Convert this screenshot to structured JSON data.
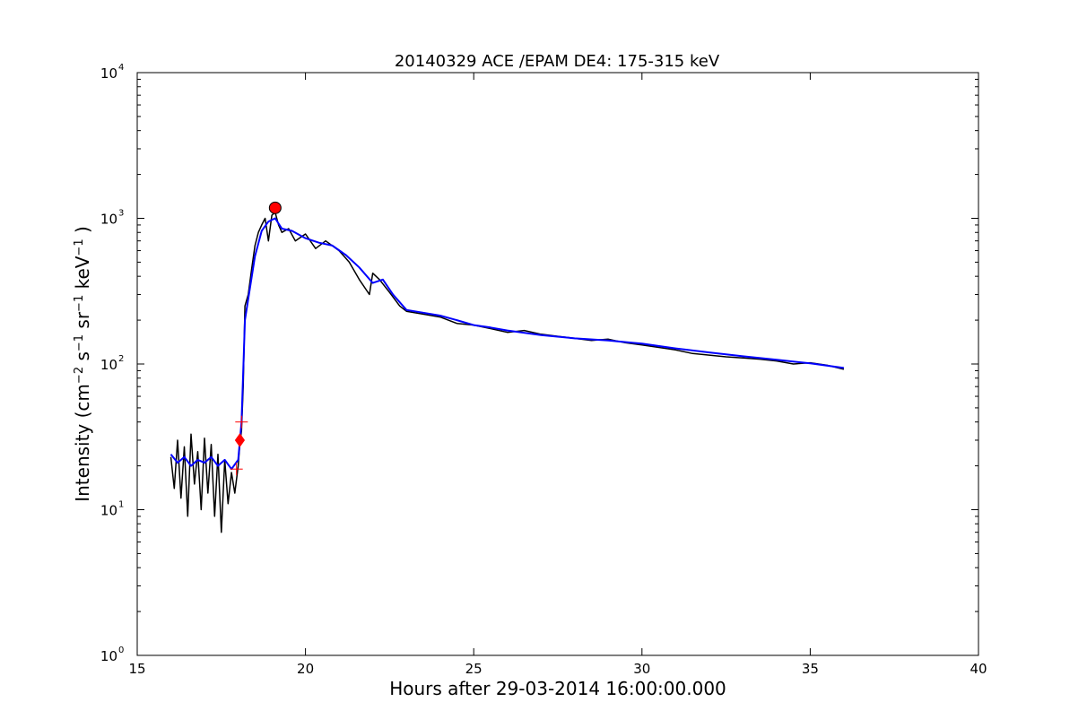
{
  "chart_data": {
    "type": "line",
    "title": "20140329 ACE /EPAM DE4: 175-315 keV",
    "xlabel": "Hours after 29-03-2014 16:00:00.000",
    "ylabel_main": "Intensity (cm",
    "ylabel_parts": [
      "Intensity (cm",
      "−2",
      " s",
      "−1",
      " sr",
      "−1",
      " keV",
      "−1",
      " )"
    ],
    "xlim": [
      15,
      40
    ],
    "ylim": [
      1,
      10000
    ],
    "yscale": "log",
    "grid": false,
    "xticks": [
      {
        "value": 15,
        "label": "15"
      },
      {
        "value": 20,
        "label": "20"
      },
      {
        "value": 25,
        "label": "25"
      },
      {
        "value": 30,
        "label": "30"
      },
      {
        "value": 35,
        "label": "35"
      },
      {
        "value": 40,
        "label": "40"
      }
    ],
    "yticks": [
      {
        "value": 1,
        "base": "10",
        "exp": "0"
      },
      {
        "value": 10,
        "base": "10",
        "exp": "1"
      },
      {
        "value": 100,
        "base": "10",
        "exp": "2"
      },
      {
        "value": 1000,
        "base": "10",
        "exp": "3"
      },
      {
        "value": 10000,
        "base": "10",
        "exp": "4"
      }
    ],
    "series": [
      {
        "color": "#000000",
        "style": "raw",
        "x": [
          16.0,
          16.1,
          16.2,
          16.3,
          16.4,
          16.5,
          16.6,
          16.7,
          16.8,
          16.9,
          17.0,
          17.1,
          17.2,
          17.3,
          17.4,
          17.5,
          17.6,
          17.7,
          17.8,
          17.9,
          18.0,
          18.05,
          18.1,
          18.15,
          18.2,
          18.3,
          18.4,
          18.5,
          18.6,
          18.7,
          18.8,
          18.9,
          19.0,
          19.1,
          19.2,
          19.3,
          19.5,
          19.7,
          20.0,
          20.3,
          20.6,
          21.0,
          21.3,
          21.6,
          21.9,
          22.0,
          22.2,
          22.5,
          22.8,
          23.0,
          23.5,
          24.0,
          24.5,
          25.0,
          25.5,
          26.0,
          26.5,
          27.0,
          27.5,
          28.0,
          28.5,
          29.0,
          29.5,
          30.0,
          30.5,
          31.0,
          31.5,
          32.0,
          32.5,
          33.0,
          33.5,
          34.0,
          34.5,
          35.0,
          35.5,
          36.0
        ],
        "y": [
          23,
          14,
          30,
          12,
          27,
          9,
          33,
          15,
          25,
          10,
          31,
          13,
          28,
          9,
          24,
          7,
          22,
          11,
          18,
          13,
          20,
          28,
          35,
          70,
          250,
          300,
          450,
          650,
          800,
          900,
          1000,
          700,
          1050,
          1100,
          900,
          800,
          850,
          700,
          780,
          620,
          700,
          600,
          500,
          380,
          300,
          420,
          380,
          310,
          250,
          230,
          220,
          210,
          190,
          185,
          175,
          165,
          170,
          160,
          155,
          150,
          145,
          148,
          140,
          135,
          130,
          125,
          118,
          115,
          112,
          110,
          108,
          105,
          100,
          102,
          98,
          92
        ]
      },
      {
        "color": "#0000ff",
        "style": "smoothed",
        "x": [
          16.0,
          16.2,
          16.4,
          16.6,
          16.8,
          17.0,
          17.2,
          17.4,
          17.6,
          17.8,
          18.0,
          18.1,
          18.2,
          18.3,
          18.5,
          18.7,
          18.9,
          19.1,
          19.3,
          19.6,
          20.0,
          20.4,
          20.8,
          21.2,
          21.6,
          22.0,
          22.3,
          22.6,
          23.0,
          23.5,
          24.0,
          24.5,
          25.0,
          25.5,
          26.0,
          27.0,
          28.0,
          29.0,
          30.0,
          31.0,
          32.0,
          33.0,
          34.0,
          35.0,
          36.0
        ],
        "y": [
          24,
          21,
          23,
          20,
          22,
          21,
          23,
          20,
          22,
          19,
          22,
          40,
          200,
          280,
          550,
          820,
          950,
          1000,
          850,
          820,
          730,
          680,
          650,
          560,
          460,
          360,
          380,
          300,
          235,
          225,
          215,
          200,
          185,
          178,
          170,
          158,
          150,
          145,
          138,
          128,
          120,
          113,
          107,
          101,
          94
        ]
      }
    ],
    "markers": [
      {
        "shape": "circle",
        "color": "#ff0000",
        "x": 19.1,
        "y": 1180
      },
      {
        "shape": "diamond",
        "color": "#ff0000",
        "x": 18.05,
        "y": 30
      },
      {
        "shape": "plus",
        "color": "#ff0000",
        "x": 18.1,
        "y": 40
      },
      {
        "shape": "plus",
        "color": "#ff0000",
        "x": 17.95,
        "y": 19
      }
    ]
  }
}
